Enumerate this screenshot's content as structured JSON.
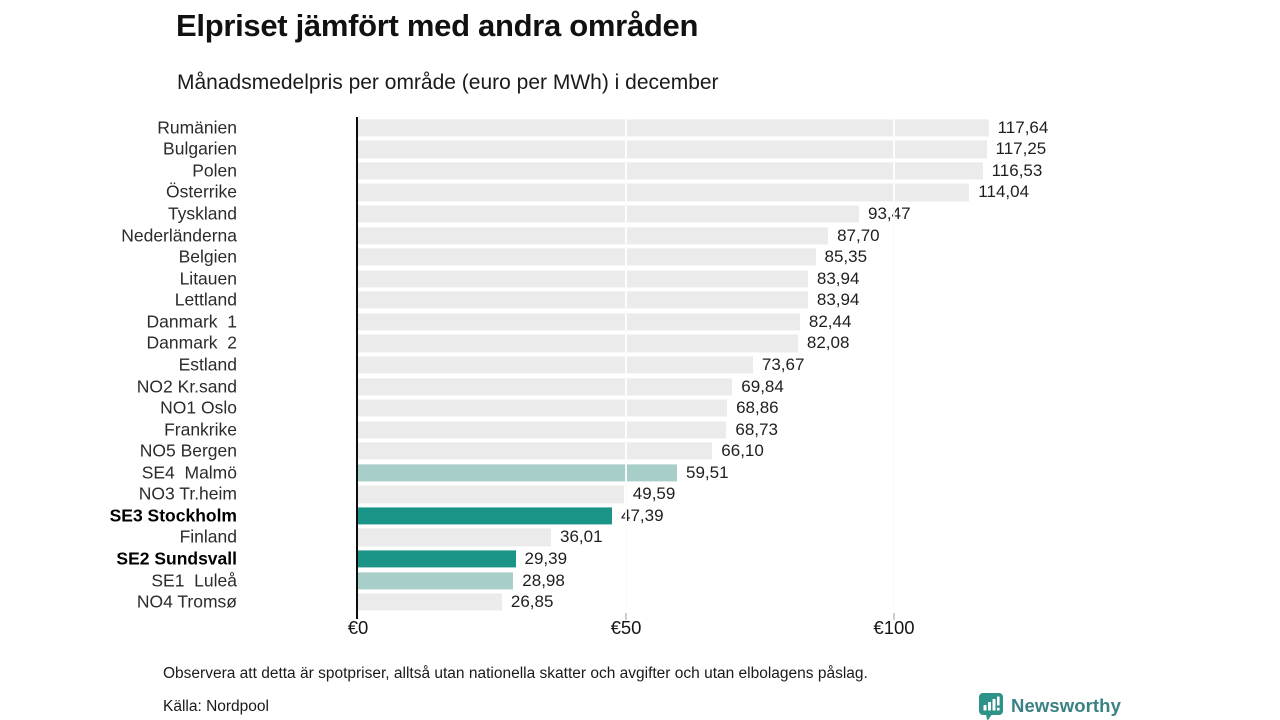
{
  "title": "Elpriset jämfört med andra områden",
  "subtitle": "Månadsmedelpris per område (euro per MWh) i december",
  "footer": {
    "note": "Observera att detta är spotpriser, alltså utan nationella skatter och avgifter och utan elbolagens påslag.",
    "source": "Källa: Nordpool",
    "brand": "Newsworthy"
  },
  "colors": {
    "bar_default": "#ebebeb",
    "bar_highlight_dark": "#1b9488",
    "bar_highlight_light": "#a7cec8",
    "axis": "#0c0c0c",
    "brand_teal": "#3a8184"
  },
  "chart_data": {
    "type": "bar",
    "orientation": "horizontal",
    "title": "Elpriset jämfört med andra områden",
    "subtitle": "Månadsmedelpris per område (euro per MWh) i december",
    "unit": "euro per MWh",
    "xlim": [
      0,
      120
    ],
    "x_tick_labels": [
      "€0",
      "€50",
      "€100"
    ],
    "x_tick_values": [
      0,
      50,
      100
    ],
    "grid": "vertical",
    "categories": [
      "Rumänien",
      "Bulgarien",
      "Polen",
      "Österrike",
      "Tyskland",
      "Nederländerna",
      "Belgien",
      "Litauen",
      "Lettland",
      "Danmark  1",
      "Danmark  2",
      "Estland",
      "NO2 Kr.sand",
      "NO1 Oslo",
      "Frankrike",
      "NO5 Bergen",
      "SE4  Malmö",
      "NO3 Tr.heim",
      "SE3 Stockholm",
      "Finland",
      "SE2 Sundsvall",
      "SE1  Luleå",
      "NO4 Tromsø"
    ],
    "values": [
      117.64,
      117.25,
      116.53,
      114.04,
      93.47,
      87.7,
      85.35,
      83.94,
      83.94,
      82.44,
      82.08,
      73.67,
      69.84,
      68.86,
      68.73,
      66.1,
      59.51,
      49.59,
      47.39,
      36.01,
      29.39,
      28.98,
      26.85
    ],
    "value_labels": [
      "117,64",
      "117,25",
      "116,53",
      "114,04",
      "93,47",
      "87,70",
      "85,35",
      "83,94",
      "83,94",
      "82,44",
      "82,08",
      "73,67",
      "69,84",
      "68,86",
      "68,73",
      "66,10",
      "59,51",
      "49,59",
      "47,39",
      "36,01",
      "29,39",
      "28,98",
      "26,85"
    ],
    "bar_styles": [
      "default",
      "default",
      "default",
      "default",
      "default",
      "default",
      "default",
      "default",
      "default",
      "default",
      "default",
      "default",
      "default",
      "default",
      "default",
      "default",
      "light",
      "default",
      "dark",
      "default",
      "dark",
      "light",
      "default"
    ],
    "bold_rows": [
      18,
      20
    ]
  }
}
